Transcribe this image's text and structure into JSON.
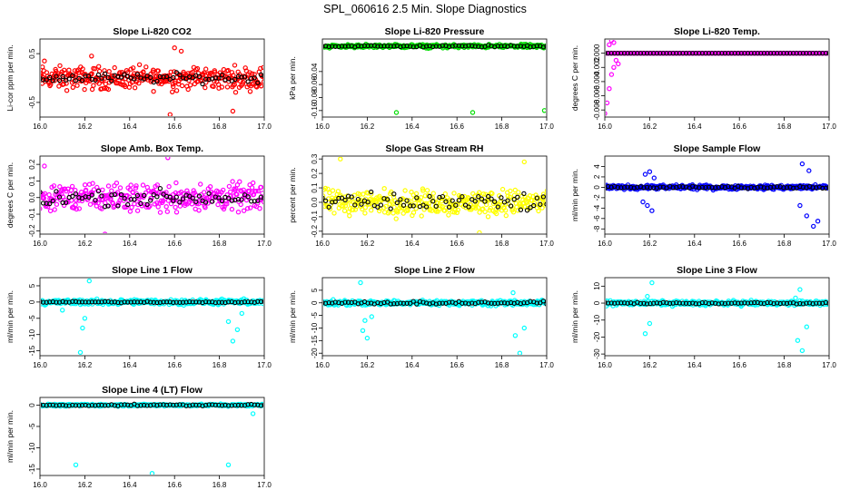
{
  "page_title": "SPL_060616  2.5 Min. Slope Diagnostics",
  "chart_data": [
    {
      "type": "scatter",
      "title": "Slope Li-820 CO2",
      "ylabel": "Li-cor ppm per min.",
      "xlim": [
        16.0,
        17.0
      ],
      "ylim": [
        -0.8,
        0.8
      ],
      "xticks": [
        16.0,
        16.2,
        16.4,
        16.6,
        16.8,
        17.0
      ],
      "xtick_labels": [
        "16.0",
        "16.2",
        "16.4",
        "16.6",
        "16.8",
        "17.0"
      ],
      "yticks": [
        -0.5,
        0.5
      ],
      "ytick_labels": [
        "-0.5",
        "0.5"
      ],
      "color": "#ff0000",
      "sample_spread": 0.34,
      "sample_outliers": [
        [
          16.58,
          -0.75
        ],
        [
          16.6,
          0.62
        ],
        [
          16.63,
          0.55
        ],
        [
          16.86,
          -0.68
        ],
        [
          16.23,
          0.45
        ],
        [
          16.02,
          0.35
        ]
      ],
      "black_spread": 0.14
    },
    {
      "type": "scatter",
      "title": "Slope Li-820 Pressure",
      "ylabel": "kPa per min.",
      "xlim": [
        16.0,
        17.0
      ],
      "ylim": [
        -0.11,
        0.01
      ],
      "xticks": [
        16.0,
        16.2,
        16.4,
        16.6,
        16.8,
        17.0
      ],
      "xtick_labels": [
        "16.0",
        "16.2",
        "16.4",
        "16.6",
        "16.8",
        "17.0"
      ],
      "yticks": [
        -0.1,
        -0.08,
        -0.06,
        -0.04
      ],
      "ytick_labels": [
        "-0.10",
        "-0.08",
        "-0.06",
        "-0.04"
      ],
      "color": "#00dd00",
      "sample_spread": 0.004,
      "sample_outliers": [
        [
          16.33,
          -0.103
        ],
        [
          16.67,
          -0.103
        ],
        [
          16.99,
          -0.1
        ]
      ],
      "black_spread": 0.002
    },
    {
      "type": "scatter",
      "title": "Slope Li-820 Temp.",
      "ylabel": "degrees C per min.",
      "xlim": [
        16.0,
        17.0
      ],
      "ylim": [
        -0.009,
        0.002
      ],
      "xticks": [
        16.0,
        16.2,
        16.4,
        16.6,
        16.8,
        17.0
      ],
      "xtick_labels": [
        "16.0",
        "16.2",
        "16.4",
        "16.6",
        "16.8",
        "17.0"
      ],
      "yticks": [
        -0.008,
        -0.006,
        -0.004,
        -0.002,
        0.0
      ],
      "ytick_labels": [
        "-0.008",
        "-0.006",
        "-0.004",
        "-0.002",
        "0.000"
      ],
      "color": "#ff00ff",
      "sample_spread": 0.0,
      "sample_outliers": [
        [
          16.0,
          -0.0085
        ],
        [
          16.01,
          -0.007
        ],
        [
          16.02,
          -0.005
        ],
        [
          16.03,
          -0.003
        ],
        [
          16.02,
          0.0012
        ],
        [
          16.03,
          0.0018
        ],
        [
          16.04,
          0.0015
        ],
        [
          16.05,
          -0.001
        ],
        [
          16.06,
          -0.0015
        ],
        [
          16.04,
          -0.002
        ]
      ],
      "black_spread": 0.0
    },
    {
      "type": "scatter",
      "title": "Slope Amb. Box Temp.",
      "ylabel": "degrees C per min.",
      "xlim": [
        16.0,
        17.0
      ],
      "ylim": [
        -0.22,
        0.25
      ],
      "xticks": [
        16.0,
        16.2,
        16.4,
        16.6,
        16.8,
        17.0
      ],
      "xtick_labels": [
        "16.0",
        "16.2",
        "16.4",
        "16.6",
        "16.8",
        "17.0"
      ],
      "yticks": [
        -0.2,
        -0.1,
        0.0,
        0.1,
        0.2
      ],
      "ytick_labels": [
        "-0.2",
        "-0.1",
        "0.0",
        "0.1",
        "0.2"
      ],
      "color": "#ff00ff",
      "sample_spread": 0.12,
      "sample_outliers": [
        [
          16.57,
          0.24
        ],
        [
          16.29,
          -0.22
        ],
        [
          16.02,
          0.19
        ]
      ],
      "black_spread": 0.07
    },
    {
      "type": "scatter",
      "title": "Slope Gas Stream RH",
      "ylabel": "percent per min.",
      "xlim": [
        16.0,
        17.0
      ],
      "ylim": [
        -0.22,
        0.32
      ],
      "xticks": [
        16.0,
        16.2,
        16.4,
        16.6,
        16.8,
        17.0
      ],
      "xtick_labels": [
        "16.0",
        "16.2",
        "16.4",
        "16.6",
        "16.8",
        "17.0"
      ],
      "yticks": [
        -0.2,
        -0.1,
        0.0,
        0.1,
        0.2,
        0.3
      ],
      "ytick_labels": [
        "-0.2",
        "-0.1",
        "0.0",
        "0.1",
        "0.2",
        "0.3"
      ],
      "color": "#ffff00",
      "sample_spread": 0.13,
      "sample_outliers": [
        [
          16.08,
          0.3
        ],
        [
          16.7,
          -0.21
        ],
        [
          16.9,
          0.28
        ]
      ],
      "black_spread": 0.09
    },
    {
      "type": "scatter",
      "title": "Slope Sample Flow",
      "ylabel": "ml/min per min.",
      "xlim": [
        16.0,
        17.0
      ],
      "ylim": [
        -9,
        6
      ],
      "xticks": [
        16.0,
        16.2,
        16.4,
        16.6,
        16.8,
        17.0
      ],
      "xtick_labels": [
        "16.0",
        "16.2",
        "16.4",
        "16.6",
        "16.8",
        "17.0"
      ],
      "yticks": [
        -8,
        -6,
        -4,
        -2,
        0,
        2,
        4
      ],
      "ytick_labels": [
        "-8",
        "-6",
        "-4",
        "-2",
        "0",
        "2",
        "4"
      ],
      "color": "#0000ff",
      "sample_spread": 0.6,
      "sample_outliers": [
        [
          16.18,
          2.5
        ],
        [
          16.2,
          3.0
        ],
        [
          16.17,
          -2.8
        ],
        [
          16.21,
          -4.5
        ],
        [
          16.19,
          -3.5
        ],
        [
          16.22,
          1.8
        ],
        [
          16.87,
          -3.5
        ],
        [
          16.9,
          -5.5
        ],
        [
          16.93,
          -7.5
        ],
        [
          16.88,
          4.5
        ],
        [
          16.91,
          3.2
        ],
        [
          16.95,
          -6.5
        ]
      ],
      "black_spread": 0.3
    },
    {
      "type": "scatter",
      "title": "Slope Line 1 Flow",
      "ylabel": "ml/min per min.",
      "xlim": [
        16.0,
        17.0
      ],
      "ylim": [
        -16.5,
        7.5
      ],
      "xticks": [
        16.0,
        16.2,
        16.4,
        16.6,
        16.8,
        17.0
      ],
      "xtick_labels": [
        "16.0",
        "16.2",
        "16.4",
        "16.6",
        "16.8",
        "17.0"
      ],
      "yticks": [
        -15,
        -10,
        -5,
        0,
        5
      ],
      "ytick_labels": [
        "-15",
        "-10",
        "-5",
        "0",
        "5"
      ],
      "color": "#00ffff",
      "sample_spread": 1.2,
      "sample_outliers": [
        [
          16.18,
          -15.5
        ],
        [
          16.19,
          -8.0
        ],
        [
          16.22,
          6.5
        ],
        [
          16.2,
          -5.0
        ],
        [
          16.86,
          -12.0
        ],
        [
          16.88,
          -8.5
        ],
        [
          16.84,
          -6.0
        ],
        [
          16.9,
          -3.5
        ],
        [
          16.1,
          -2.5
        ]
      ],
      "black_spread": 0.3
    },
    {
      "type": "scatter",
      "title": "Slope Line 2 Flow",
      "ylabel": "ml/min per min.",
      "xlim": [
        16.0,
        17.0
      ],
      "ylim": [
        -21,
        10
      ],
      "xticks": [
        16.0,
        16.2,
        16.4,
        16.6,
        16.8,
        17.0
      ],
      "xtick_labels": [
        "16.0",
        "16.2",
        "16.4",
        "16.6",
        "16.8",
        "17.0"
      ],
      "yticks": [
        -20,
        -15,
        -10,
        -5,
        0,
        5
      ],
      "ytick_labels": [
        "-20",
        "-15",
        "-10",
        "-5",
        "0",
        "5"
      ],
      "color": "#00ffff",
      "sample_spread": 1.5,
      "sample_outliers": [
        [
          16.18,
          -11.0
        ],
        [
          16.2,
          -14.0
        ],
        [
          16.19,
          -7.0
        ],
        [
          16.17,
          8.0
        ],
        [
          16.88,
          -20.0
        ],
        [
          16.86,
          -13.0
        ],
        [
          16.9,
          -10.0
        ],
        [
          16.85,
          4.0
        ],
        [
          16.22,
          -5.5
        ]
      ],
      "black_spread": 0.8
    },
    {
      "type": "scatter",
      "title": "Slope Line 3 Flow",
      "ylabel": "ml/min per min.",
      "xlim": [
        16.0,
        17.0
      ],
      "ylim": [
        -31,
        15
      ],
      "xticks": [
        16.0,
        16.2,
        16.4,
        16.6,
        16.8,
        17.0
      ],
      "xtick_labels": [
        "16.0",
        "16.2",
        "16.4",
        "16.6",
        "16.8",
        "17.0"
      ],
      "yticks": [
        -30,
        -20,
        -10,
        0,
        10
      ],
      "ytick_labels": [
        "-30",
        "-20",
        "-10",
        "0",
        "10"
      ],
      "color": "#00ffff",
      "sample_spread": 2.0,
      "sample_outliers": [
        [
          16.18,
          -18.0
        ],
        [
          16.2,
          -12.0
        ],
        [
          16.19,
          4.0
        ],
        [
          16.21,
          12.0
        ],
        [
          16.88,
          -28.0
        ],
        [
          16.86,
          -22.0
        ],
        [
          16.9,
          -14.0
        ],
        [
          16.87,
          8.0
        ],
        [
          16.85,
          3.0
        ]
      ],
      "black_spread": 0.8
    },
    {
      "type": "scatter",
      "title": "Slope Line 4 (LT) Flow",
      "ylabel": "ml/min per min.",
      "xlim": [
        16.0,
        17.0
      ],
      "ylim": [
        -16.5,
        1.8
      ],
      "xticks": [
        16.0,
        16.2,
        16.4,
        16.6,
        16.8,
        17.0
      ],
      "xtick_labels": [
        "16.0",
        "16.2",
        "16.4",
        "16.6",
        "16.8",
        "17.0"
      ],
      "yticks": [
        -15,
        -10,
        -5,
        0
      ],
      "ytick_labels": [
        "-15",
        "-10",
        "-5",
        "0"
      ],
      "color": "#00ffff",
      "sample_spread": 0.35,
      "sample_outliers": [
        [
          16.16,
          -14.0
        ],
        [
          16.5,
          -16.0
        ],
        [
          16.84,
          -14.0
        ],
        [
          16.95,
          -2.0
        ]
      ],
      "black_spread": 0.25
    }
  ]
}
